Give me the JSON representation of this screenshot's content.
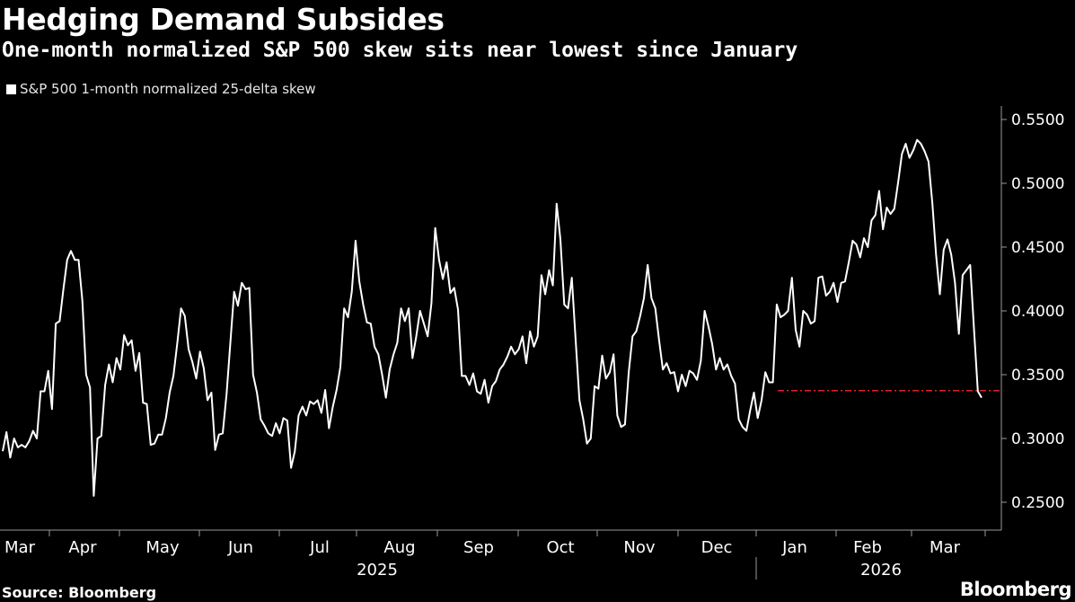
{
  "title": "Hedging Demand Subsides",
  "subtitle": "One-month normalized S&P 500 skew sits near lowest since January",
  "source": "Source: Bloomberg",
  "brand": "Bloomberg",
  "colors": {
    "background": "#000000",
    "line": "#ffffff",
    "reference_line": "#e0202a",
    "axis": "#9a9a9a"
  },
  "chart_data": {
    "type": "line",
    "title": "Hedging Demand Subsides",
    "subtitle": "One-month normalized S&P 500 skew sits near lowest since January",
    "ylim": [
      0.24,
      0.56
    ],
    "y_ticks": [
      "0.5500",
      "0.5000",
      "0.4500",
      "0.4000",
      "0.3500",
      "0.3000",
      "0.2500"
    ],
    "y_tick_values": [
      0.55,
      0.5,
      0.45,
      0.4,
      0.35,
      0.3,
      0.25
    ],
    "y_axis_side": "right",
    "x_month_labels": [
      "Mar",
      "Apr",
      "May",
      "Jun",
      "Jul",
      "Aug",
      "Sep",
      "Oct",
      "Nov",
      "Dec",
      "Jan",
      "Feb",
      "Mar"
    ],
    "x_year_labels": [
      "2025",
      "2026"
    ],
    "grid": false,
    "legend_position": "top-left",
    "reference_line": {
      "value": 0.3375,
      "style": "dash-dot",
      "start_month": "Jan"
    },
    "series": [
      {
        "name": "S&P 500 1-month normalized 25-delta skew",
        "values": [
          0.29,
          0.305,
          0.285,
          0.3,
          0.293,
          0.295,
          0.293,
          0.298,
          0.306,
          0.3,
          0.337,
          0.337,
          0.353,
          0.323,
          0.39,
          0.392,
          0.417,
          0.44,
          0.447,
          0.44,
          0.44,
          0.408,
          0.35,
          0.34,
          0.255,
          0.3,
          0.302,
          0.342,
          0.358,
          0.344,
          0.363,
          0.354,
          0.381,
          0.373,
          0.377,
          0.353,
          0.367,
          0.328,
          0.327,
          0.295,
          0.296,
          0.303,
          0.303,
          0.316,
          0.336,
          0.349,
          0.374,
          0.402,
          0.396,
          0.37,
          0.36,
          0.347,
          0.368,
          0.355,
          0.33,
          0.336,
          0.291,
          0.303,
          0.304,
          0.335,
          0.375,
          0.415,
          0.404,
          0.422,
          0.417,
          0.418,
          0.35,
          0.336,
          0.315,
          0.31,
          0.304,
          0.302,
          0.312,
          0.304,
          0.316,
          0.314,
          0.277,
          0.29,
          0.318,
          0.325,
          0.318,
          0.329,
          0.327,
          0.33,
          0.32,
          0.338,
          0.308,
          0.325,
          0.338,
          0.356,
          0.402,
          0.395,
          0.415,
          0.455,
          0.423,
          0.405,
          0.391,
          0.39,
          0.372,
          0.366,
          0.35,
          0.332,
          0.354,
          0.366,
          0.375,
          0.402,
          0.392,
          0.402,
          0.363,
          0.38,
          0.4,
          0.39,
          0.38,
          0.406,
          0.465,
          0.44,
          0.425,
          0.438,
          0.414,
          0.418,
          0.401,
          0.349,
          0.349,
          0.342,
          0.351,
          0.337,
          0.335,
          0.346,
          0.328,
          0.341,
          0.345,
          0.354,
          0.358,
          0.364,
          0.372,
          0.366,
          0.37,
          0.38,
          0.359,
          0.384,
          0.372,
          0.38,
          0.428,
          0.413,
          0.432,
          0.42,
          0.484,
          0.456,
          0.405,
          0.402,
          0.426,
          0.378,
          0.33,
          0.315,
          0.296,
          0.3,
          0.341,
          0.339,
          0.365,
          0.347,
          0.352,
          0.366,
          0.318,
          0.309,
          0.311,
          0.352,
          0.38,
          0.384,
          0.396,
          0.41,
          0.436,
          0.41,
          0.402,
          0.377,
          0.354,
          0.359,
          0.351,
          0.352,
          0.337,
          0.35,
          0.341,
          0.353,
          0.351,
          0.346,
          0.361,
          0.4,
          0.388,
          0.374,
          0.354,
          0.363,
          0.354,
          0.358,
          0.349,
          0.343,
          0.315,
          0.309,
          0.306,
          0.322,
          0.336,
          0.316,
          0.33,
          0.352,
          0.344,
          0.344,
          0.405,
          0.395,
          0.397,
          0.4,
          0.426,
          0.385,
          0.372,
          0.4,
          0.397,
          0.39,
          0.392,
          0.426,
          0.427,
          0.412,
          0.415,
          0.422,
          0.407,
          0.422,
          0.423,
          0.438,
          0.455,
          0.452,
          0.442,
          0.457,
          0.45,
          0.471,
          0.475,
          0.494,
          0.464,
          0.481,
          0.476,
          0.48,
          0.501,
          0.523,
          0.531,
          0.52,
          0.526,
          0.534,
          0.531,
          0.525,
          0.517,
          0.485,
          0.444,
          0.413,
          0.448,
          0.456,
          0.444,
          0.422,
          0.382,
          0.428,
          0.432,
          0.436,
          0.385,
          0.337,
          0.332
        ]
      }
    ]
  }
}
